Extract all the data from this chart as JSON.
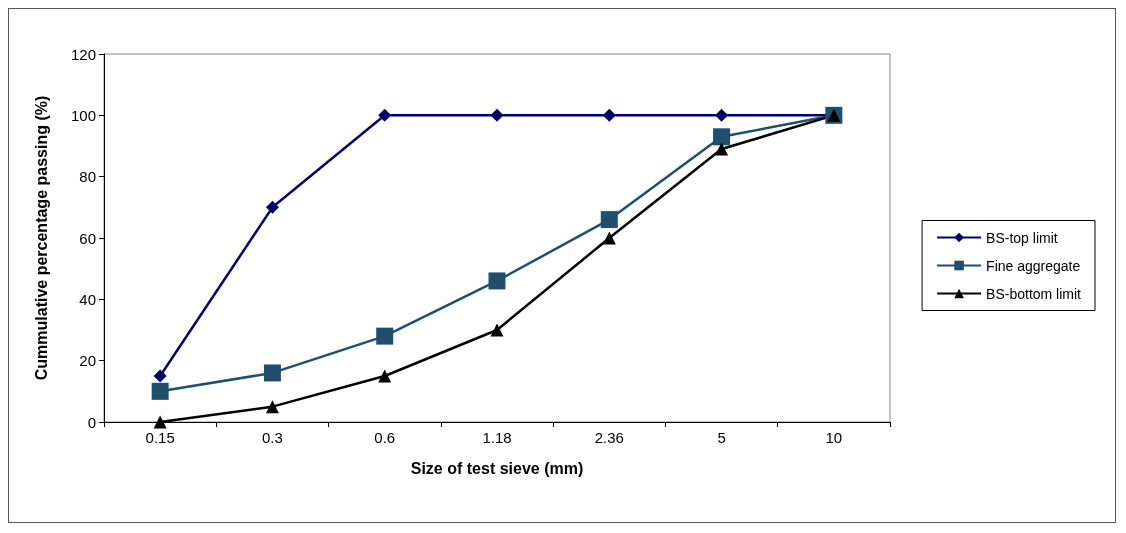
{
  "chart_data": {
    "type": "line",
    "xlabel": "Size of test sieve (mm)",
    "ylabel": "Cummulative percentage passing (%)",
    "categories": [
      "0.15",
      "0.3",
      "0.6",
      "1.18",
      "2.36",
      "5",
      "10"
    ],
    "series": [
      {
        "name": "BS-top limit",
        "color": "#000066",
        "marker": "diamond",
        "values": [
          15,
          70,
          100,
          100,
          100,
          100,
          100
        ]
      },
      {
        "name": "Fine aggregate",
        "color": "#1f4e6e",
        "marker": "square",
        "values": [
          10,
          16,
          28,
          46,
          66,
          93,
          100
        ]
      },
      {
        "name": "BS-bottom limit",
        "color": "#000000",
        "marker": "triangle",
        "values": [
          0,
          5,
          15,
          30,
          60,
          89,
          100
        ]
      }
    ],
    "ylim": [
      0,
      120
    ],
    "yticks": [
      0,
      20,
      40,
      60,
      80,
      100,
      120
    ],
    "grid": false,
    "legend": "right",
    "line_style": "solid"
  }
}
